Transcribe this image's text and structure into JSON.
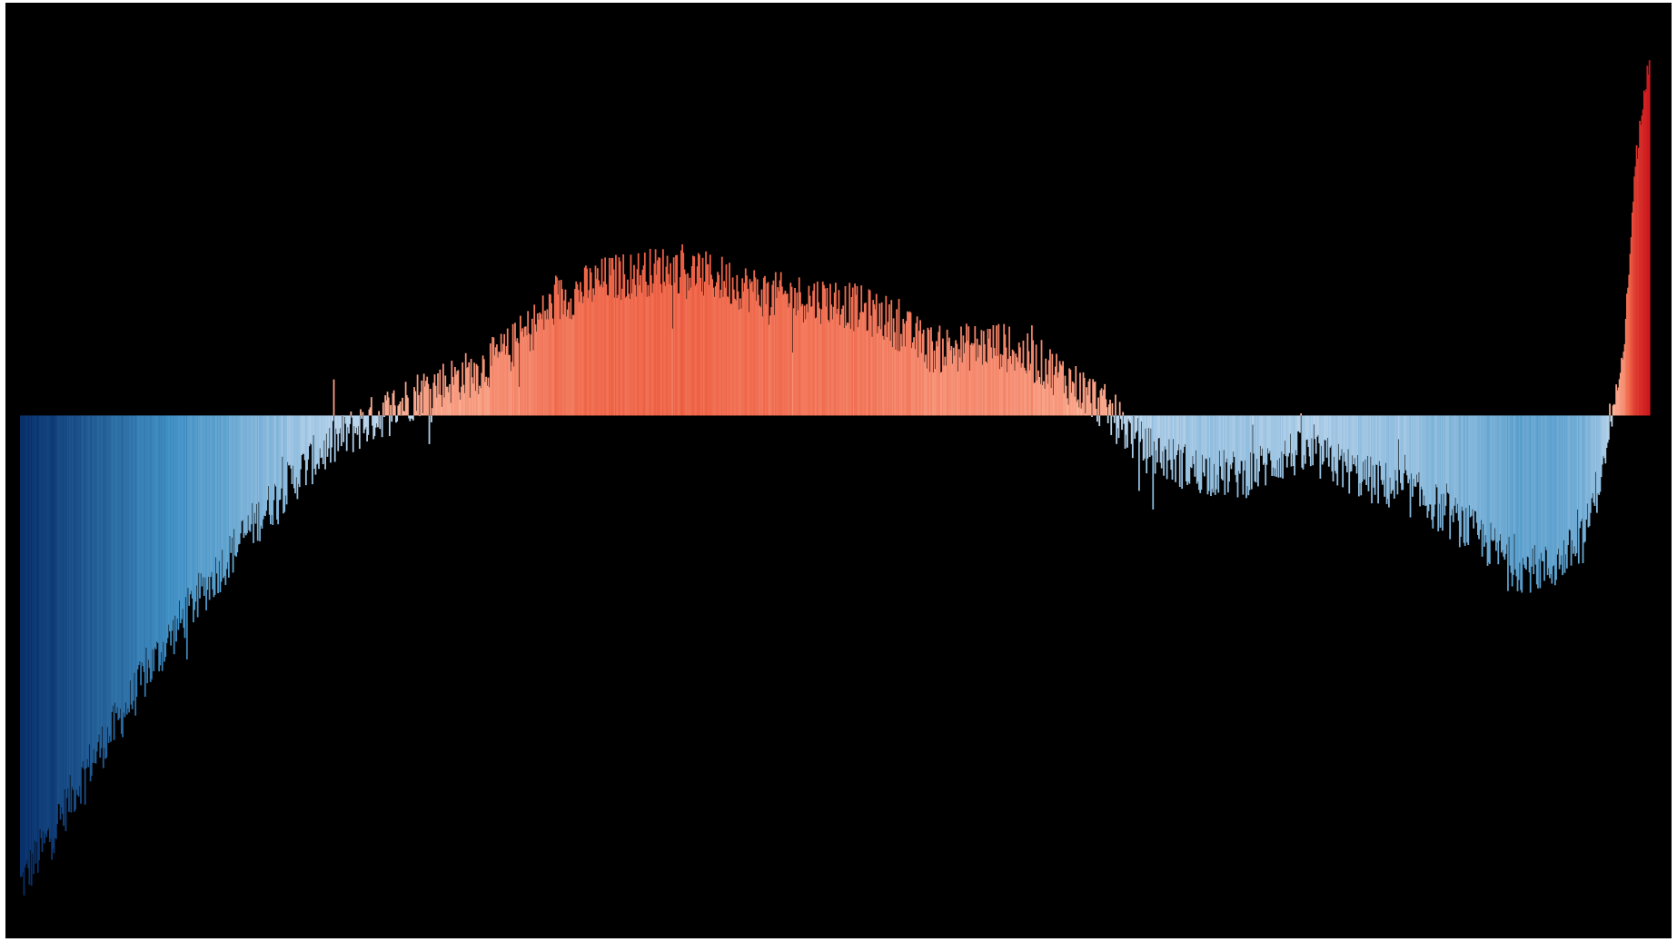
{
  "chart_data": {
    "type": "bar",
    "title": "",
    "xlabel": "",
    "ylabel": "",
    "x_range": [
      0,
      1
    ],
    "ylim": [
      -1.85,
      1.38
    ],
    "grid": false,
    "legend": "none",
    "baseline": 0,
    "background": "#000000",
    "colors": {
      "cold_strong": "#08306b",
      "cold_mid": "#4292c6",
      "cold_light": "#c6dbef",
      "warm_light": "#fcbba1",
      "warm_mid": "#ef6548",
      "warm_strong": "#cb181d"
    },
    "trend": {
      "x": [
        0.0,
        0.02,
        0.04,
        0.06,
        0.08,
        0.1,
        0.12,
        0.14,
        0.16,
        0.18,
        0.2,
        0.22,
        0.25,
        0.28,
        0.3,
        0.33,
        0.36,
        0.4,
        0.43,
        0.46,
        0.5,
        0.53,
        0.56,
        0.6,
        0.63,
        0.66,
        0.69,
        0.72,
        0.75,
        0.78,
        0.8,
        0.83,
        0.86,
        0.89,
        0.92,
        0.94,
        0.96,
        0.975,
        0.985,
        0.99,
        0.995,
        1.0
      ],
      "y": [
        -1.72,
        -1.52,
        -1.3,
        -1.12,
        -0.92,
        -0.74,
        -0.58,
        -0.42,
        -0.28,
        -0.16,
        -0.07,
        0.0,
        0.1,
        0.16,
        0.24,
        0.42,
        0.5,
        0.54,
        0.5,
        0.44,
        0.42,
        0.36,
        0.24,
        0.26,
        0.18,
        0.06,
        -0.12,
        -0.2,
        -0.22,
        -0.14,
        -0.16,
        -0.24,
        -0.3,
        -0.42,
        -0.56,
        -0.56,
        -0.45,
        -0.1,
        0.3,
        0.8,
        1.1,
        1.3
      ]
    },
    "noise_amplitude": 0.09,
    "bar_count": 1520
  }
}
